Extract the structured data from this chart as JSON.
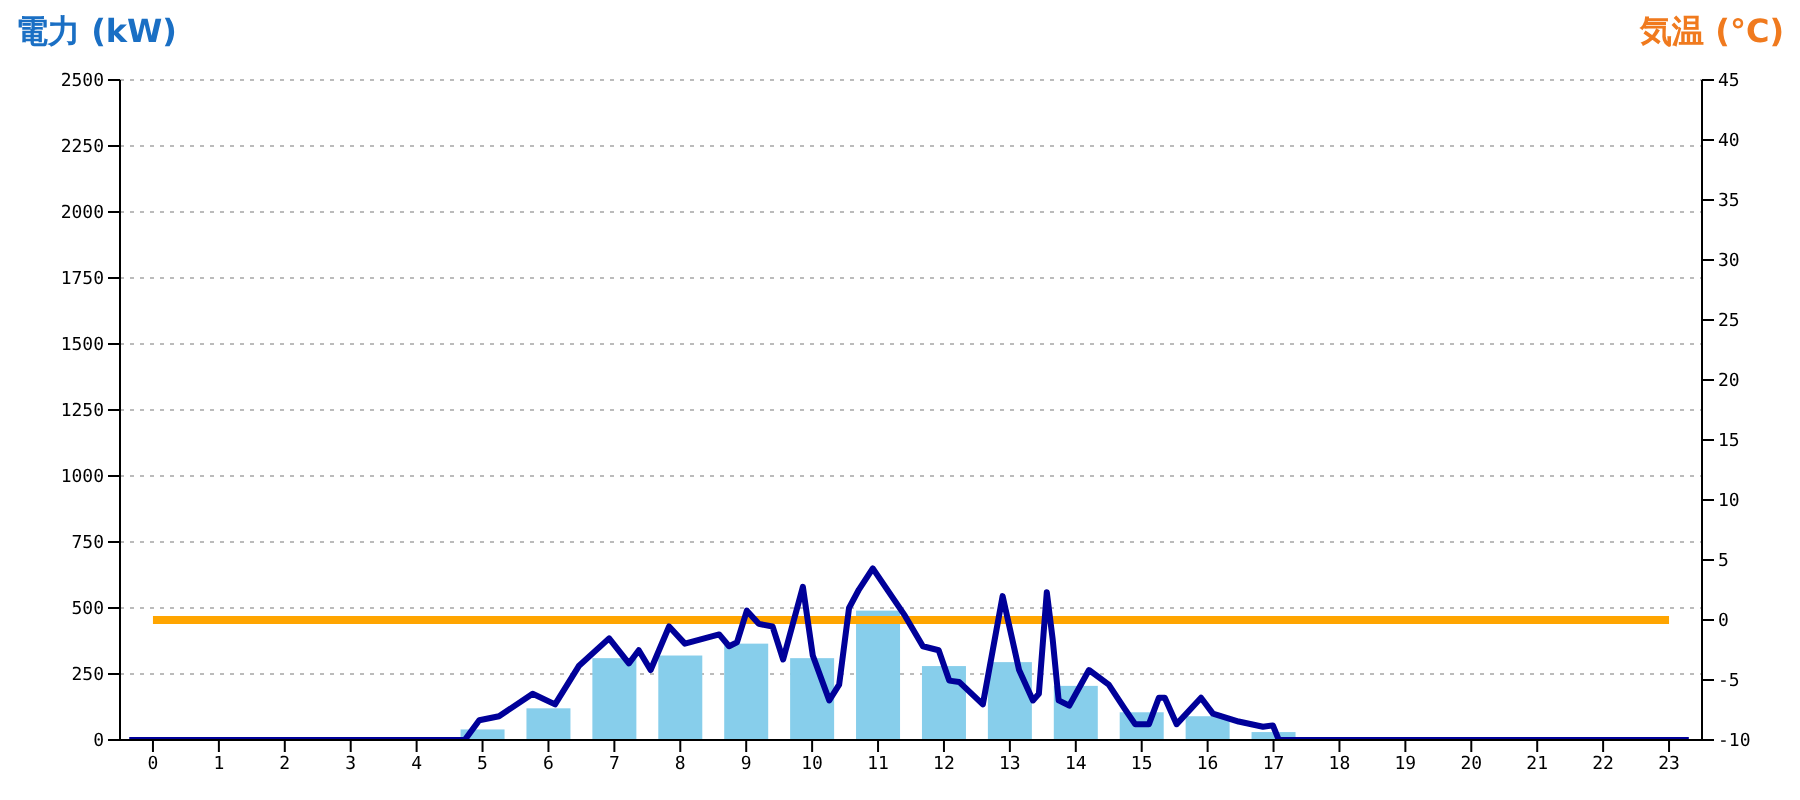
{
  "chart_data": {
    "type": "bar",
    "ylabel": "電力 (kW)",
    "y2label": "気温 (°C)",
    "x": [
      0,
      1,
      2,
      3,
      4,
      5,
      6,
      7,
      8,
      9,
      10,
      11,
      12,
      13,
      14,
      15,
      16,
      17,
      18,
      19,
      20,
      21,
      22,
      23
    ],
    "xlim": [
      -0.5,
      23.5
    ],
    "xticks": [
      0,
      1,
      2,
      3,
      4,
      5,
      6,
      7,
      8,
      9,
      10,
      11,
      12,
      13,
      14,
      15,
      16,
      17,
      18,
      19,
      20,
      21,
      22,
      23
    ],
    "ylim": [
      0,
      2500
    ],
    "yticks": [
      0,
      250,
      500,
      750,
      1000,
      1250,
      1500,
      1750,
      2000,
      2250,
      2500
    ],
    "y2lim": [
      -10,
      45
    ],
    "y2ticks": [
      -10,
      -5,
      0,
      5,
      10,
      15,
      20,
      25,
      30,
      35,
      40,
      45
    ],
    "grid": "y",
    "legend": false,
    "marker": "none",
    "line_style": "solid",
    "series": [
      {
        "color": "#87ceeb",
        "values": [
          0,
          0,
          0,
          0,
          0,
          40,
          120,
          310,
          320,
          365,
          310,
          490,
          280,
          295,
          205,
          105,
          90,
          30,
          0,
          0,
          0,
          0,
          0,
          0
        ]
      },
      {
        "type": "line",
        "color": "#000099",
        "x": [
          -0.36,
          4.73,
          4.95,
          5.25,
          5.76,
          6.1,
          6.46,
          6.92,
          7.22,
          7.37,
          7.55,
          7.83,
          8.07,
          8.59,
          8.74,
          8.86,
          9.01,
          9.19,
          9.4,
          9.56,
          9.86,
          10.01,
          10.26,
          10.41,
          10.56,
          10.71,
          10.92,
          11.41,
          11.68,
          11.92,
          12.08,
          12.23,
          12.59,
          12.89,
          13.14,
          13.35,
          13.44,
          13.56,
          13.65,
          13.74,
          13.9,
          14.2,
          14.5,
          14.75,
          14.9,
          15.11,
          15.26,
          15.35,
          15.53,
          15.9,
          16.08,
          16.47,
          16.84,
          16.99,
          17.08,
          23.3
        ],
        "values": [
          0,
          0,
          75,
          90,
          175,
          135,
          280,
          385,
          290,
          340,
          265,
          430,
          365,
          400,
          355,
          370,
          490,
          440,
          430,
          305,
          580,
          320,
          150,
          210,
          500,
          570,
          650,
          470,
          355,
          340,
          225,
          220,
          135,
          545,
          265,
          150,
          175,
          560,
          380,
          150,
          130,
          265,
          210,
          115,
          60,
          60,
          160,
          160,
          60,
          160,
          100,
          70,
          50,
          55,
          0,
          0
        ]
      },
      {
        "type": "line",
        "axis": "y2",
        "color": "#ffa500",
        "x": [
          0,
          23
        ],
        "values": [
          0,
          0
        ]
      }
    ]
  }
}
